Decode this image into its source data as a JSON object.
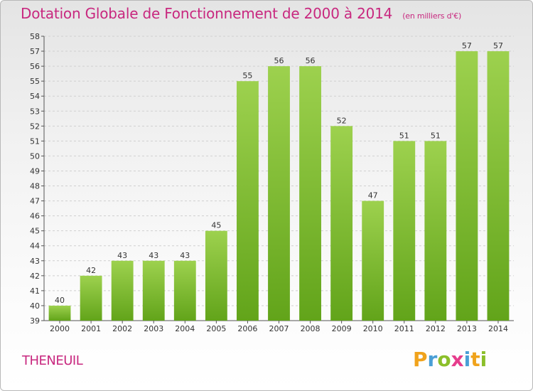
{
  "header": {
    "title": "Dotation Globale de Fonctionnement de 2000 à 2014",
    "unit": "(en milliers d'€)"
  },
  "footer": {
    "commune": "THENEUIL",
    "logo_letters": [
      "P",
      "r",
      "o",
      "x",
      "i",
      "t",
      "i"
    ],
    "logo_colors": [
      "#f0a31c",
      "#4a9fd6",
      "#8bbf2a",
      "#e63c8c",
      "#4a9fd6",
      "#f0a31c",
      "#8bbf2a"
    ]
  },
  "colors": {
    "bar_top": "#9dd14e",
    "bar_bottom": "#62a41a",
    "grid": "#d0d0d0",
    "title": "#c8287f"
  },
  "chart_data": {
    "type": "bar",
    "title": "Dotation Globale de Fonctionnement de 2000 à 2014",
    "subtitle": "(en milliers d'€)",
    "xlabel": "",
    "ylabel": "",
    "categories": [
      "2000",
      "2001",
      "2002",
      "2003",
      "2004",
      "2005",
      "2006",
      "2007",
      "2008",
      "2009",
      "2010",
      "2011",
      "2012",
      "2013",
      "2014"
    ],
    "values": [
      40,
      42,
      43,
      43,
      43,
      45,
      55,
      56,
      56,
      52,
      47,
      51,
      51,
      57,
      57
    ],
    "ylim": [
      39,
      58
    ],
    "yticks": [
      39,
      40,
      41,
      42,
      43,
      44,
      45,
      46,
      47,
      48,
      49,
      50,
      51,
      52,
      53,
      54,
      55,
      56,
      57,
      58
    ],
    "grid": true,
    "legend": "none"
  }
}
